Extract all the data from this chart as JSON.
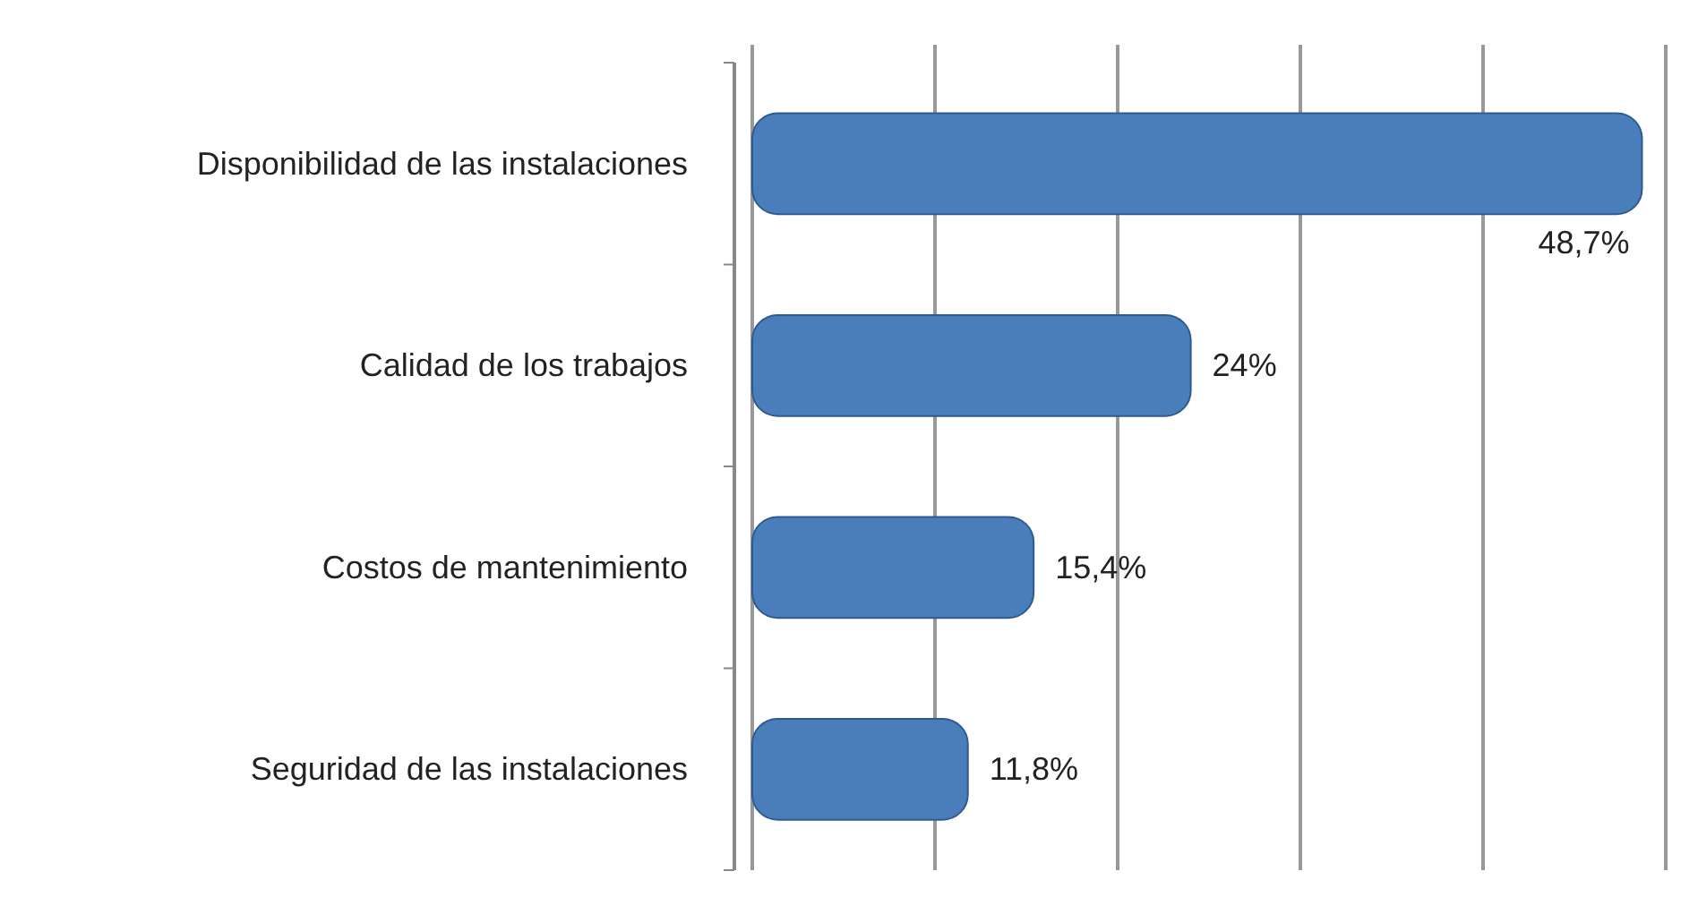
{
  "chart_data": {
    "type": "bar",
    "orientation": "horizontal",
    "categories": [
      "Disponibilidad de las instalaciones",
      "Calidad de los trabajos",
      "Costos de mantenimiento",
      "Seguridad de las instalaciones"
    ],
    "values": [
      48.7,
      24,
      15.4,
      11.8
    ],
    "value_labels": [
      "48,7%",
      "24%",
      "15,4%",
      "11,8%"
    ],
    "color": "#4a7ebb",
    "xlim": [
      0,
      50
    ],
    "xticks": [
      {
        "value": 0,
        "label": null
      },
      {
        "value": 10,
        "label": null
      },
      {
        "value": 20,
        "label": null
      },
      {
        "value": 30,
        "label": null
      },
      {
        "value": 40,
        "label": null
      },
      {
        "value": 50,
        "label": null
      }
    ],
    "tick_labels": "y",
    "grid": "x"
  }
}
